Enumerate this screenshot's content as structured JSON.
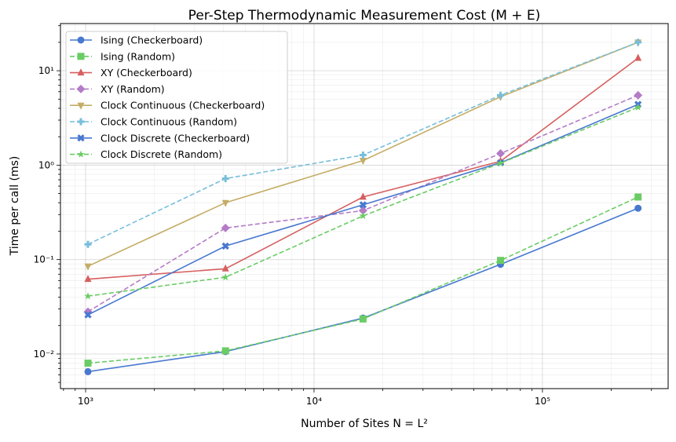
{
  "chart_data": {
    "type": "line",
    "title": "Per-Step Thermodynamic Measurement Cost (M + E)",
    "xlabel": "Number of Sites N = L²",
    "ylabel": "Time per call (ms)",
    "xscale": "log",
    "yscale": "log",
    "xlim": [
      776,
      355000
    ],
    "ylim": [
      0.0043,
      31.6
    ],
    "xticks": [
      {
        "value": 1000,
        "label": "10³"
      },
      {
        "value": 10000,
        "label": "10⁴"
      },
      {
        "value": 100000,
        "label": "10⁵"
      }
    ],
    "yticks": [
      {
        "value": 0.01,
        "label": "10⁻²"
      },
      {
        "value": 0.1,
        "label": "10⁻¹"
      },
      {
        "value": 1,
        "label": "10⁰"
      },
      {
        "value": 10,
        "label": "10¹"
      }
    ],
    "grid": true,
    "legend_position": "top-left",
    "x": [
      1024,
      4096,
      16384,
      65536,
      262144
    ],
    "series": [
      {
        "name": "Ising (Checkerboard)",
        "color": "#4878d0",
        "dash": "solid",
        "marker": "circle",
        "values": [
          0.0065,
          0.0106,
          0.024,
          0.089,
          0.35
        ]
      },
      {
        "name": "Ising (Random)",
        "color": "#6acc64",
        "dash": "dashed",
        "marker": "square",
        "values": [
          0.008,
          0.0108,
          0.0235,
          0.098,
          0.46
        ]
      },
      {
        "name": "XY (Checkerboard)",
        "color": "#d65f5f",
        "dash": "solid",
        "marker": "triangle-up",
        "values": [
          0.062,
          0.08,
          0.46,
          1.1,
          13.6
        ]
      },
      {
        "name": "XY (Random)",
        "color": "#b47cc7",
        "dash": "dashed",
        "marker": "diamond",
        "values": [
          0.028,
          0.216,
          0.33,
          1.33,
          5.5
        ]
      },
      {
        "name": "Clock Continuous (Checkerboard)",
        "color": "#c4ad66",
        "dash": "solid",
        "marker": "triangle-down",
        "values": [
          0.085,
          0.4,
          1.12,
          5.3,
          20
        ]
      },
      {
        "name": "Clock Continuous (Random)",
        "color": "#77bedb",
        "dash": "dashed",
        "marker": "plus",
        "values": [
          0.145,
          0.72,
          1.28,
          5.5,
          20
        ]
      },
      {
        "name": "Clock Discrete (Checkerboard)",
        "color": "#4878d0",
        "dash": "solid",
        "marker": "x",
        "values": [
          0.026,
          0.139,
          0.38,
          1.06,
          4.4
        ]
      },
      {
        "name": "Clock Discrete (Random)",
        "color": "#6acc64",
        "dash": "dashed",
        "marker": "star",
        "values": [
          0.041,
          0.065,
          0.29,
          1.05,
          4.1
        ]
      }
    ]
  }
}
